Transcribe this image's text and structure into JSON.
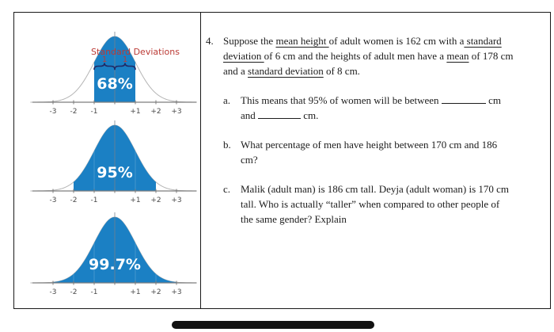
{
  "colors": {
    "fill_blue": "#1b80c4",
    "curve_gray": "#b5b5b5",
    "axis_gray": "#7d7d7d",
    "annotation_red": "#bb3a35",
    "brace_navy": "#202a66",
    "percent_text": "#ffffff",
    "text": "#1c1c1c",
    "border": "#1a1a1a",
    "bottom_bar": "#111111"
  },
  "chart_data": [
    {
      "type": "area",
      "distribution": "standard normal (empirical rule)",
      "title": "Standard Deviations",
      "x_range": [
        -4,
        4
      ],
      "tick_values": [
        -3,
        -2,
        -1,
        1,
        2,
        3
      ],
      "tick_labels": [
        "-3",
        "-2",
        "-1",
        "+1",
        "+2",
        "+3"
      ],
      "shaded_interval": [
        -1,
        1
      ],
      "shaded_percent": 68,
      "percent_label": "68%",
      "brace_labels": [
        "1",
        "1"
      ],
      "grid": false,
      "legend": "none"
    },
    {
      "type": "area",
      "distribution": "standard normal (empirical rule)",
      "title": "",
      "x_range": [
        -4,
        4
      ],
      "tick_values": [
        -3,
        -2,
        -1,
        1,
        2,
        3
      ],
      "tick_labels": [
        "-3",
        "-2",
        "-1",
        "+1",
        "+2",
        "+3"
      ],
      "shaded_interval": [
        -2,
        2
      ],
      "shaded_percent": 95,
      "percent_label": "95%",
      "grid": false,
      "legend": "none"
    },
    {
      "type": "area",
      "distribution": "standard normal (empirical rule)",
      "title": "",
      "x_range": [
        -4,
        4
      ],
      "tick_values": [
        -3,
        -2,
        -1,
        1,
        2,
        3
      ],
      "tick_labels": [
        "-3",
        "-2",
        "-1",
        "+1",
        "+2",
        "+3"
      ],
      "shaded_interval": [
        -3,
        3
      ],
      "shaded_percent": 99.7,
      "percent_label": "99.7%",
      "grid": false,
      "legend": "none"
    }
  ],
  "question": {
    "number": "4.",
    "intro_runs": [
      {
        "t": "Suppose the "
      },
      {
        "t": "mean height ",
        "u": true
      },
      {
        "t": "of adult women is 162 cm with a"
      },
      {
        "t": " standard",
        "u": true
      },
      {
        "br": true
      },
      {
        "t": "deviation ",
        "u": true
      },
      {
        "t": "of 6 cm and the heights of adult men have a "
      },
      {
        "t": "mean",
        "u": true
      },
      {
        "t": " of 178 cm"
      },
      {
        "br": true
      },
      {
        "t": "and a "
      },
      {
        "t": "standard deviation",
        "u": true
      },
      {
        "t": " of 8 cm."
      }
    ],
    "parts": [
      {
        "letter": "a.",
        "runs": [
          {
            "t": "This means that 95% of women will be between "
          },
          {
            "blank": true,
            "w": 56
          },
          {
            "t": " cm"
          },
          {
            "br": true
          },
          {
            "t": "and "
          },
          {
            "blank": true,
            "w": 54
          },
          {
            "t": " cm."
          }
        ]
      },
      {
        "letter": "b.",
        "runs": [
          {
            "t": "What percentage of men have height between 170 cm and 186"
          },
          {
            "br": true
          },
          {
            "t": "cm?"
          }
        ]
      },
      {
        "letter": "c.",
        "runs": [
          {
            "t": "Malik (adult man) is 186 cm tall. Deyja (adult woman) is 170 cm"
          },
          {
            "br": true
          },
          {
            "t": "tall. Who is actually “taller” when compared to other people of"
          },
          {
            "br": true
          },
          {
            "t": "the same gender? Explain"
          }
        ]
      }
    ]
  }
}
